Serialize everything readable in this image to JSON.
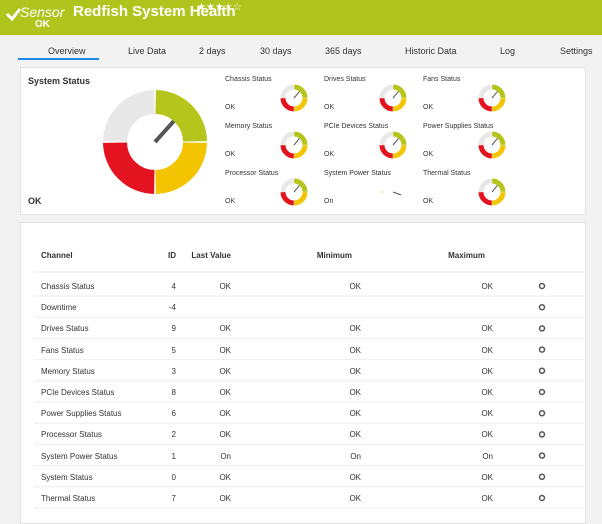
{
  "header": {
    "kind": "Sensor",
    "title": "Redfish System Health",
    "rating": "★★★☆☆",
    "status": "OK"
  },
  "tabs": [
    "Overview",
    "Live Data",
    "2 days",
    "30 days",
    "365 days",
    "Historic Data",
    "Log",
    "Settings"
  ],
  "overview": {
    "main": {
      "label": "System Status",
      "value": "OK"
    },
    "gauges": [
      {
        "label": "Chassis Status",
        "value": "OK"
      },
      {
        "label": "Drives Status",
        "value": "OK"
      },
      {
        "label": "Fans Status",
        "value": "OK"
      },
      {
        "label": "Memory Status",
        "value": "OK"
      },
      {
        "label": "PCIe Devices Status",
        "value": "OK"
      },
      {
        "label": "Power Supplies Status",
        "value": "OK"
      },
      {
        "label": "Processor Status",
        "value": "OK"
      },
      {
        "label": "System Power Status",
        "value": "On"
      },
      {
        "label": "Thermal Status",
        "value": "OK"
      }
    ]
  },
  "table": {
    "headers": [
      "Channel",
      "ID",
      "Last Value",
      "Minimum",
      "Maximum"
    ],
    "rows": [
      {
        "channel": "Chassis Status",
        "id": "4",
        "last": "OK",
        "min": "OK",
        "max": "OK"
      },
      {
        "channel": "Downtime",
        "id": "-4"
      },
      {
        "channel": "Drives Status",
        "id": "9",
        "last": "OK",
        "min": "OK",
        "max": "OK"
      },
      {
        "channel": "Fans Status",
        "id": "5",
        "last": "OK",
        "min": "OK",
        "max": "OK"
      },
      {
        "channel": "Memory Status",
        "id": "3",
        "last": "OK",
        "min": "OK",
        "max": "OK"
      },
      {
        "channel": "PCIe Devices Status",
        "id": "8",
        "last": "OK",
        "min": "OK",
        "max": "OK"
      },
      {
        "channel": "Power Supplies Status",
        "id": "6",
        "last": "OK",
        "min": "OK",
        "max": "OK"
      },
      {
        "channel": "Processor Status",
        "id": "2",
        "last": "OK",
        "min": "OK",
        "max": "OK"
      },
      {
        "channel": "System Power Status",
        "id": "1",
        "last": "On",
        "min": "On",
        "max": "On"
      },
      {
        "channel": "System Status",
        "id": "0",
        "last": "OK",
        "min": "OK",
        "max": "OK"
      },
      {
        "channel": "Thermal Status",
        "id": "7",
        "last": "OK",
        "min": "OK",
        "max": "OK"
      }
    ]
  }
}
